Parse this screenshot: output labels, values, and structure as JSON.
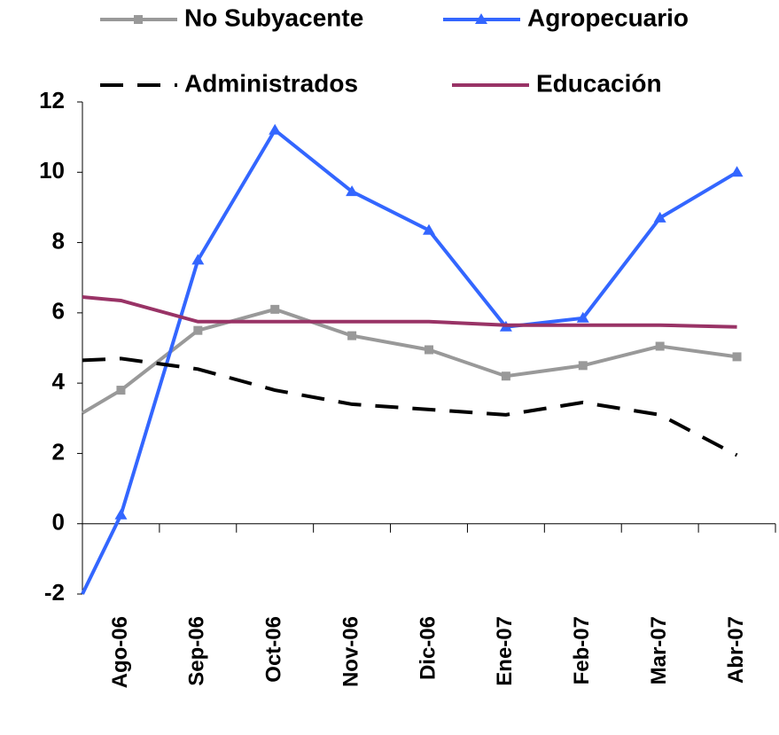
{
  "chart_data": {
    "type": "line",
    "categories": [
      null,
      "Ago-06",
      "Sep-06",
      "Oct-06",
      "Nov-06",
      "Dic-06",
      "Ene-07",
      "Feb-07",
      "Mar-07",
      "Abr-07"
    ],
    "series": [
      {
        "name": "No Subyacente",
        "color": "#999999",
        "marker": "square",
        "values": [
          3.15,
          3.8,
          5.5,
          6.1,
          5.35,
          4.95,
          4.2,
          4.5,
          5.05,
          4.75
        ]
      },
      {
        "name": "Agropecuario",
        "color": "#3366ff",
        "marker": "triangle",
        "values": [
          -2.0,
          0.25,
          7.5,
          11.2,
          9.45,
          8.35,
          5.6,
          5.85,
          8.7,
          10.0
        ]
      },
      {
        "name": "Administrados",
        "color": "#000000",
        "dash": true,
        "values": [
          4.65,
          4.7,
          4.4,
          3.8,
          3.4,
          3.25,
          3.1,
          3.45,
          3.1,
          1.95
        ]
      },
      {
        "name": "Educación",
        "color": "#993366",
        "values": [
          6.45,
          6.35,
          5.75,
          5.75,
          5.75,
          5.75,
          5.65,
          5.65,
          5.65,
          5.6
        ]
      }
    ],
    "ylim": [
      -2,
      12
    ],
    "yticks": [
      -2,
      0,
      2,
      4,
      6,
      8,
      10,
      12
    ],
    "grid": false
  }
}
